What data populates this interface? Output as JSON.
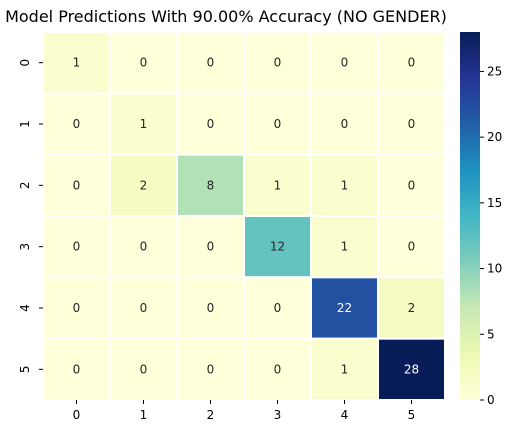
{
  "chart_data": {
    "type": "heatmap",
    "title": "Model Predictions With 90.00% Accuracy (NO GENDER)",
    "xlabel": "",
    "ylabel": "",
    "x_categories": [
      "0",
      "1",
      "2",
      "3",
      "4",
      "5"
    ],
    "y_categories": [
      "0",
      "1",
      "2",
      "3",
      "4",
      "5"
    ],
    "values": [
      [
        1,
        0,
        0,
        0,
        0,
        0
      ],
      [
        0,
        1,
        0,
        0,
        0,
        0
      ],
      [
        0,
        2,
        8,
        1,
        1,
        0
      ],
      [
        0,
        0,
        0,
        12,
        1,
        0
      ],
      [
        0,
        0,
        0,
        0,
        22,
        2
      ],
      [
        0,
        0,
        0,
        0,
        1,
        28
      ]
    ],
    "colormap": "YlGnBu",
    "vmin": 0,
    "vmax": 28,
    "colorbar_ticks": [
      "0",
      "5",
      "10",
      "15",
      "20",
      "25"
    ],
    "cell_border_color": "#ffffff",
    "grid": false,
    "legend": "colorbar-right"
  }
}
